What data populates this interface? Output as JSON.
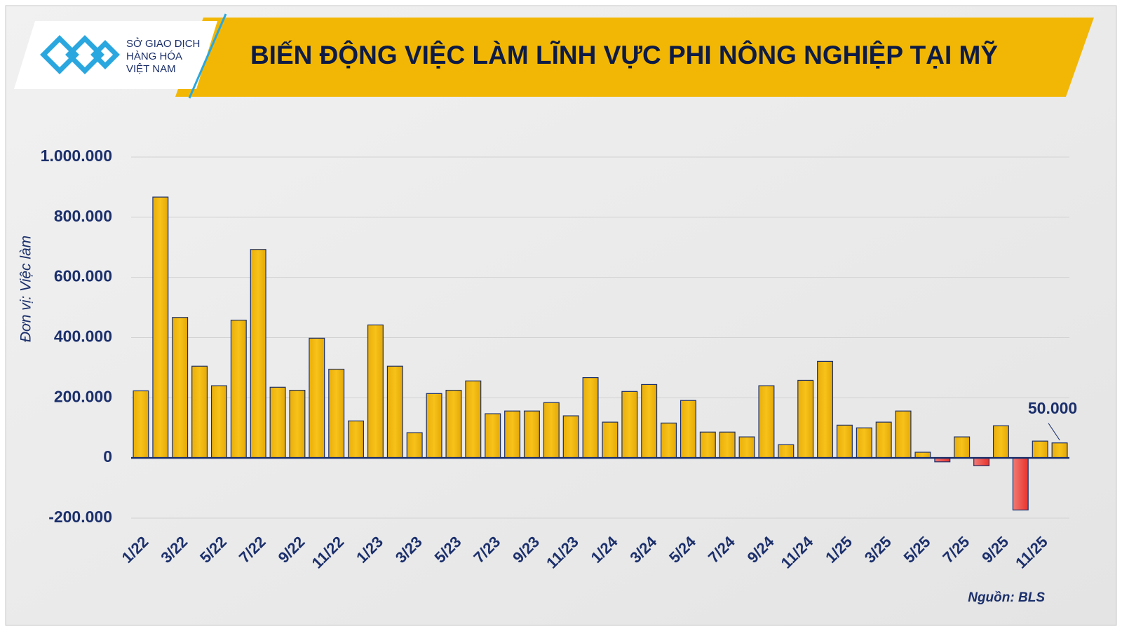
{
  "header": {
    "logo_lines": [
      "SỞ GIAO DỊCH",
      "HÀNG HÓA",
      "VIỆT NAM"
    ]
  },
  "chart_data": {
    "type": "bar",
    "title": "BIẾN ĐỘNG VIỆC LÀM LĨNH VỰC PHI NÔNG NGHIỆP TẠI MỸ",
    "y_label": "Đơn vị: Việc làm",
    "source": "Nguồn: BLS",
    "categories": [
      "1/22",
      null,
      "3/22",
      null,
      "5/22",
      null,
      "7/22",
      null,
      "9/22",
      null,
      "11/22",
      null,
      "1/23",
      null,
      "3/23",
      null,
      "5/23",
      null,
      "7/23",
      null,
      "9/23",
      null,
      "11/23",
      null,
      "1/24",
      null,
      "3/24",
      null,
      "5/24",
      null,
      "7/24",
      null,
      "9/24",
      null,
      "11/24",
      null,
      "1/25",
      null,
      "3/25",
      null,
      "5/25",
      null,
      "7/25",
      null,
      "9/25",
      null,
      "11/25",
      null
    ],
    "values": [
      223000,
      867000,
      467000,
      305000,
      240000,
      458000,
      693000,
      235000,
      225000,
      398000,
      295000,
      123000,
      442000,
      305000,
      84000,
      214000,
      225000,
      256000,
      147000,
      156000,
      156000,
      184000,
      140000,
      267000,
      119000,
      221000,
      244000,
      116000,
      191000,
      86000,
      86000,
      70000,
      240000,
      44000,
      258000,
      321000,
      109000,
      100000,
      119000,
      156000,
      19000,
      -13000,
      70000,
      -26000,
      107000,
      -173000,
      56000,
      50000
    ],
    "value_labels": [
      null,
      null,
      null,
      null,
      null,
      null,
      null,
      null,
      null,
      null,
      null,
      null,
      null,
      null,
      null,
      null,
      null,
      null,
      null,
      null,
      null,
      null,
      null,
      null,
      null,
      null,
      null,
      null,
      null,
      null,
      null,
      null,
      null,
      null,
      null,
      null,
      null,
      null,
      null,
      null,
      null,
      null,
      null,
      null,
      null,
      null,
      null,
      "50.000"
    ],
    "color": "#f2b705",
    "negative_color": "#e8322b",
    "ylim": [
      -200000,
      1000000
    ],
    "yticks": [
      {
        "value": -200000,
        "label": "-200.000"
      },
      0,
      {
        "value": 200000,
        "label": "200.000"
      },
      {
        "value": 400000,
        "label": "400.000"
      },
      {
        "value": 600000,
        "label": "600.000"
      },
      {
        "value": 800000,
        "label": "800.000"
      },
      {
        "value": 1000000,
        "label": "1.000.000"
      }
    ],
    "grid": true
  }
}
